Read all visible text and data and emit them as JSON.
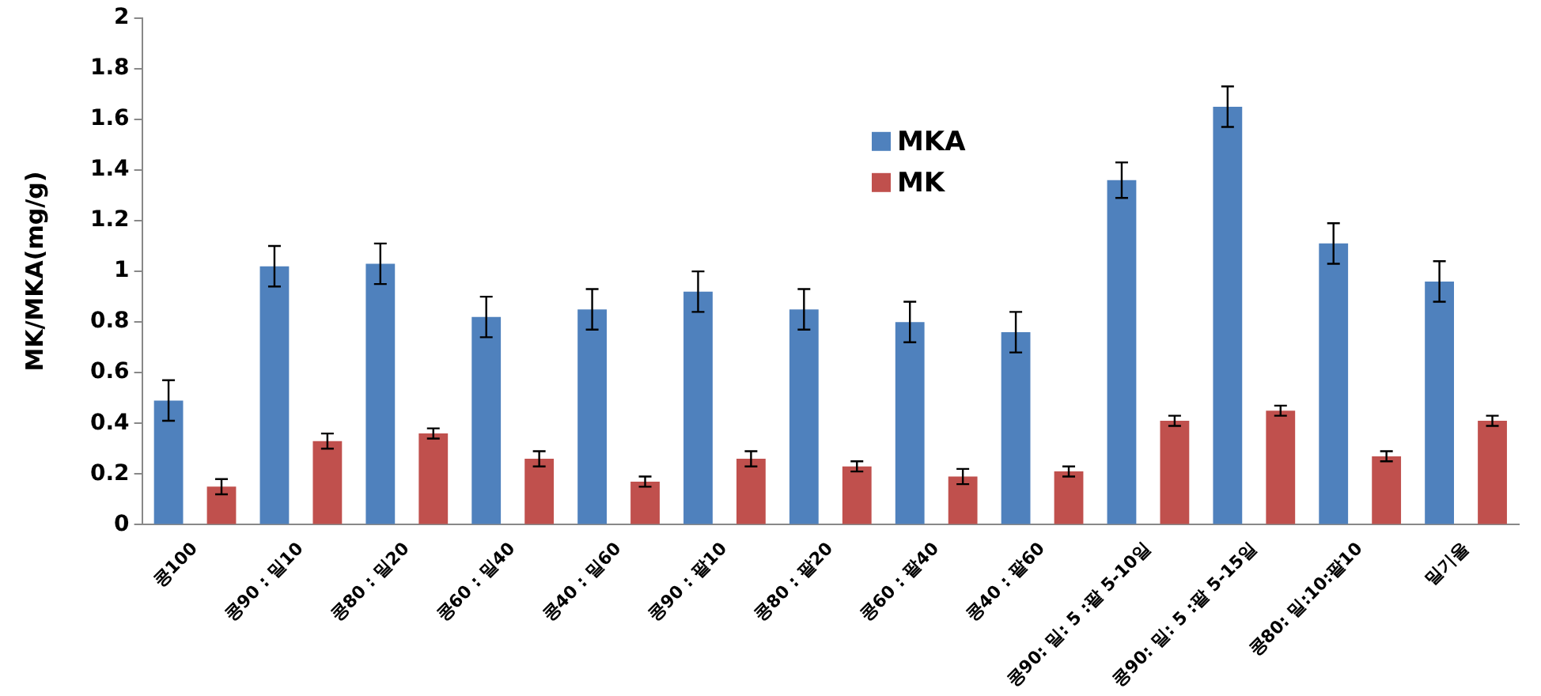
{
  "chart_data": {
    "type": "bar",
    "ylabel": "MK/MKA(mg/g)",
    "categories": [
      "콩100",
      "콩90 : 밀10",
      "콩80 : 밀20",
      "콩60 : 밀40",
      "콩40 : 밀60",
      "콩90 : 팥10",
      "콩80 : 팥20",
      "콩60 : 팥40",
      "콩40 : 팥60",
      "콩90: 밀: 5 :팥 5-10일",
      "콩90: 밀: 5 :팥 5-15일",
      "콩80: 밀:10:팥10",
      "밀기울"
    ],
    "series": [
      {
        "name": "MKA",
        "color": "#4f81bd",
        "values": [
          0.49,
          1.02,
          1.03,
          0.82,
          0.85,
          0.92,
          0.85,
          0.8,
          0.76,
          1.36,
          1.65,
          1.11,
          0.96
        ],
        "errors": [
          0.08,
          0.08,
          0.08,
          0.08,
          0.08,
          0.08,
          0.08,
          0.08,
          0.08,
          0.07,
          0.08,
          0.08,
          0.08
        ]
      },
      {
        "name": "MK",
        "color": "#c0504d",
        "values": [
          0.15,
          0.33,
          0.36,
          0.26,
          0.17,
          0.26,
          0.23,
          0.19,
          0.21,
          0.41,
          0.45,
          0.27,
          0.41
        ],
        "errors": [
          0.03,
          0.03,
          0.02,
          0.03,
          0.02,
          0.03,
          0.02,
          0.03,
          0.02,
          0.02,
          0.02,
          0.02,
          0.02
        ]
      }
    ],
    "ylim": [
      0,
      2
    ],
    "yticks": [
      0,
      0.2,
      0.4,
      0.6,
      0.8,
      1,
      1.2,
      1.4,
      1.6,
      1.8,
      2
    ],
    "grid": false,
    "legend": "top"
  }
}
